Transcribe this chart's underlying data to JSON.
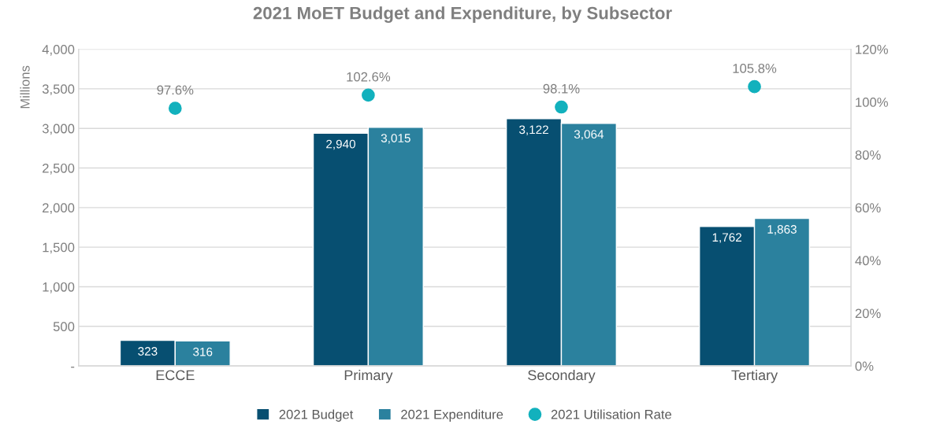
{
  "chart_data": {
    "type": "bar",
    "title": "2021 MoET Budget and Expenditure, by Subsector",
    "ylabel": "Millions",
    "categories": [
      "ECCE",
      "Primary",
      "Secondary",
      "Tertiary"
    ],
    "series": [
      {
        "name": "2021 Budget",
        "color": "#074f71",
        "values": [
          323,
          2940,
          3122,
          1762
        ],
        "value_labels": [
          "323",
          "2,940",
          "3,122",
          "1,762"
        ]
      },
      {
        "name": "2021 Expenditure",
        "color": "#2b819e",
        "values": [
          316,
          3015,
          3064,
          1863
        ],
        "value_labels": [
          "316",
          "3,015",
          "3,064",
          "1,863"
        ]
      },
      {
        "name": "2021 Utilisation Rate",
        "type": "scatter",
        "axis": "y2",
        "color": "#12b1bd",
        "marker": "circle",
        "values": [
          97.6,
          102.6,
          98.1,
          105.8
        ],
        "value_labels": [
          "97.6%",
          "102.6%",
          "98.1%",
          "105.8%"
        ]
      }
    ],
    "ylim": [
      0,
      4000
    ],
    "yticks": [
      {
        "value": 0,
        "label": "-"
      },
      {
        "value": 500,
        "label": "500"
      },
      {
        "value": 1000,
        "label": "1,000"
      },
      {
        "value": 1500,
        "label": "1,500"
      },
      {
        "value": 2000,
        "label": "2,000"
      },
      {
        "value": 2500,
        "label": "2,500"
      },
      {
        "value": 3000,
        "label": "3,000"
      },
      {
        "value": 3500,
        "label": "3,500"
      },
      {
        "value": 4000,
        "label": "4,000"
      }
    ],
    "y2lim": [
      0,
      120
    ],
    "y2ticks": [
      {
        "value": 0,
        "label": "0%"
      },
      {
        "value": 20,
        "label": "20%"
      },
      {
        "value": 40,
        "label": "40%"
      },
      {
        "value": 60,
        "label": "60%"
      },
      {
        "value": 80,
        "label": "80%"
      },
      {
        "value": 100,
        "label": "100%"
      },
      {
        "value": 120,
        "label": "120%"
      }
    ],
    "grid": "y",
    "legend": "bottom"
  }
}
